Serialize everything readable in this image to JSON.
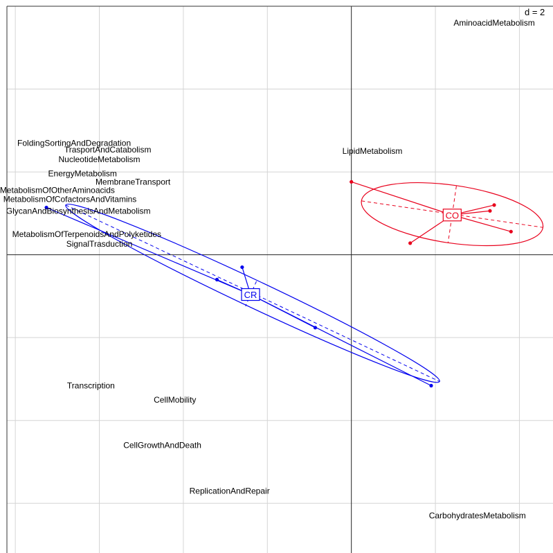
{
  "chart_data": {
    "type": "scatter",
    "scale_label": "d = 2",
    "grid": true,
    "xlim": [
      -4.1,
      2.4
    ],
    "ylim": [
      -3.6,
      3.0
    ],
    "axes_origin": [
      0,
      0
    ],
    "variables": [
      {
        "name": "AminoacidMetabolism",
        "x": 1.7,
        "y": 2.8
      },
      {
        "name": "LipidMetabolism",
        "x": 0.25,
        "y": 1.25
      },
      {
        "name": "FoldingSortingAndDegradation",
        "x": -3.3,
        "y": 1.35
      },
      {
        "name": "TrasportAndCatabolism",
        "x": -2.9,
        "y": 1.27
      },
      {
        "name": "NucleotideMetabolism",
        "x": -3.0,
        "y": 1.15
      },
      {
        "name": "EnergyMetabolism",
        "x": -3.2,
        "y": 0.98
      },
      {
        "name": "MembraneTransport",
        "x": -2.6,
        "y": 0.88
      },
      {
        "name": "MetabolismOfOtherAminoacids",
        "x": -3.5,
        "y": 0.78
      },
      {
        "name": "MetabolismOfCofactorsAndVitamins",
        "x": -3.35,
        "y": 0.67
      },
      {
        "name": "GlycanAndBiosynthesisAndMetabolism",
        "x": -3.25,
        "y": 0.53
      },
      {
        "name": "MetabolismOfTerpenoidsAndPolyketides",
        "x": -3.15,
        "y": 0.25
      },
      {
        "name": "SignalTrasduction",
        "x": -3.0,
        "y": 0.13
      },
      {
        "name": "Transcription",
        "x": -3.1,
        "y": -1.58
      },
      {
        "name": "CellMobility",
        "x": -2.1,
        "y": -1.75
      },
      {
        "name": "CellGrowthAndDeath",
        "x": -2.25,
        "y": -2.3
      },
      {
        "name": "ReplicationAndRepair",
        "x": -1.45,
        "y": -2.85
      },
      {
        "name": "CarbohydratesMetabolism",
        "x": 1.5,
        "y": -3.15
      }
    ],
    "groups": [
      {
        "name": "CR",
        "color": "#0000ee",
        "centroid": [
          -1.2,
          -0.48
        ],
        "points": [
          [
            -3.63,
            0.57
          ],
          [
            -1.3,
            -0.15
          ],
          [
            -1.6,
            -0.3
          ],
          [
            -0.43,
            -0.88
          ],
          [
            0.95,
            -1.58
          ]
        ],
        "ellipse": {
          "axis1": [
            -3.4,
            0.6,
            1.05,
            -1.53
          ],
          "axis2": [
            -1.13,
            -0.32,
            -1.26,
            -0.62
          ]
        }
      },
      {
        "name": "CO",
        "color": "#e8001c",
        "centroid": [
          1.2,
          0.48
        ],
        "points": [
          [
            0.0,
            0.88
          ],
          [
            1.7,
            0.6
          ],
          [
            1.65,
            0.53
          ],
          [
            1.9,
            0.28
          ],
          [
            0.7,
            0.14
          ]
        ],
        "ellipse": {
          "axis1": [
            0.12,
            0.65,
            2.28,
            0.33
          ],
          "axis2": [
            1.25,
            0.83,
            1.15,
            0.14
          ]
        }
      }
    ]
  }
}
